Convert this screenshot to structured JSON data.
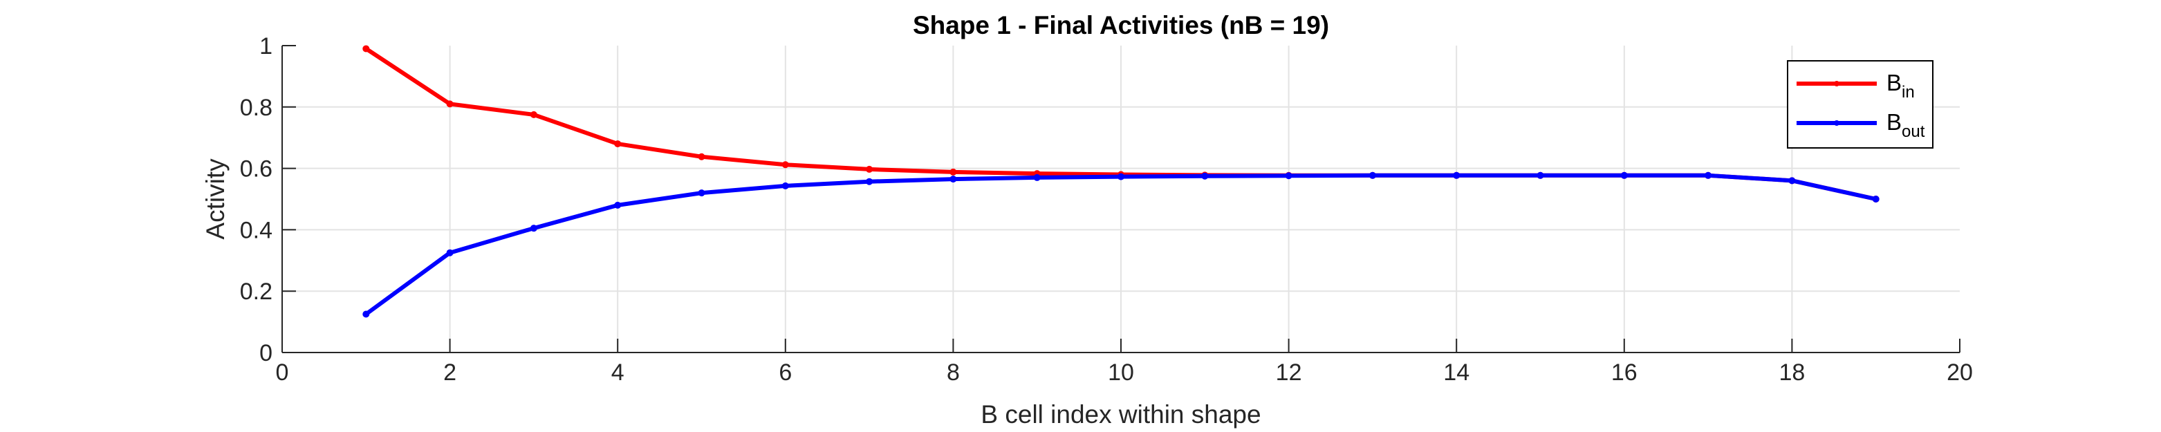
{
  "chart_data": {
    "type": "line",
    "title": "Shape 1 - Final Activities (nB = 19)",
    "xlabel": "B cell index within shape",
    "ylabel": "Activity",
    "xlim": [
      0,
      20
    ],
    "ylim": [
      0,
      1
    ],
    "x_ticks": [
      0,
      2,
      4,
      6,
      8,
      10,
      12,
      14,
      16,
      18,
      20
    ],
    "y_ticks": [
      0,
      0.2,
      0.4,
      0.6,
      0.8,
      1
    ],
    "grid": true,
    "legend_position": "top-right",
    "x": [
      1,
      2,
      3,
      4,
      5,
      6,
      7,
      8,
      9,
      10,
      11,
      12,
      13,
      14,
      15,
      16,
      17,
      18,
      19
    ],
    "series": [
      {
        "name_base": "B",
        "name_sub": "in",
        "color": "#ff0000",
        "values": [
          0.99,
          0.81,
          0.775,
          0.68,
          0.638,
          0.612,
          0.597,
          0.588,
          0.583,
          0.58,
          0.578,
          0.577,
          0.577,
          0.577,
          0.577,
          0.577,
          0.577,
          0.56,
          0.5
        ]
      },
      {
        "name_base": "B",
        "name_sub": "out",
        "color": "#0000ff",
        "values": [
          0.125,
          0.325,
          0.405,
          0.48,
          0.52,
          0.543,
          0.557,
          0.565,
          0.57,
          0.573,
          0.575,
          0.576,
          0.577,
          0.577,
          0.577,
          0.577,
          0.577,
          0.56,
          0.5
        ]
      }
    ]
  }
}
